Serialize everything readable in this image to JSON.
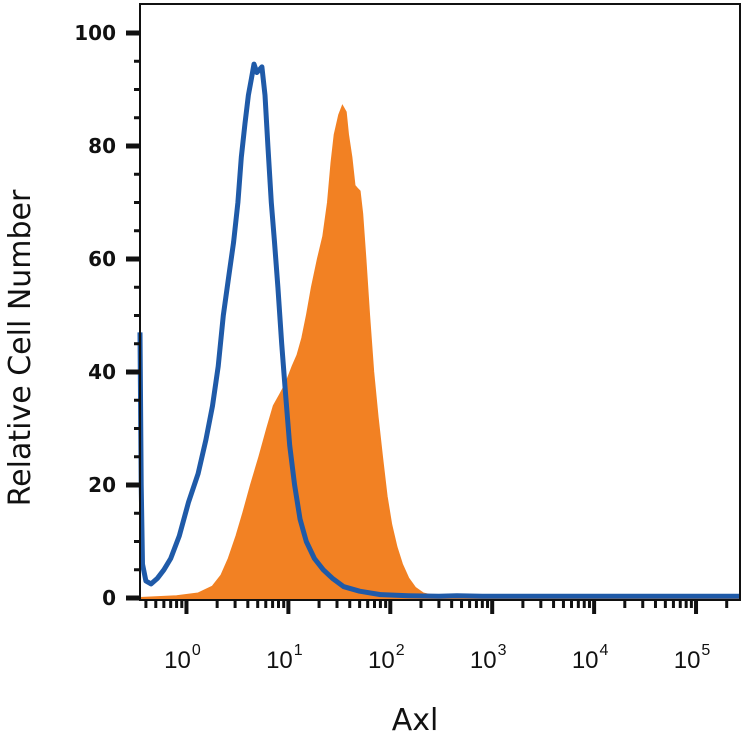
{
  "chart_data": {
    "type": "area",
    "xlabel": "Axl",
    "ylabel": "Relative Cell Number",
    "x_scale": "log",
    "xlim": [
      0.35,
      270000
    ],
    "ylim": [
      0,
      100
    ],
    "y_ticks": [
      {
        "value": 0,
        "label": "0"
      },
      {
        "value": 20,
        "label": "20"
      },
      {
        "value": 40,
        "label": "40"
      },
      {
        "value": 60,
        "label": "60"
      },
      {
        "value": 80,
        "label": "80"
      },
      {
        "value": 100,
        "label": "100"
      }
    ],
    "x_ticks": [
      {
        "value": 1,
        "base": "10",
        "exp": "0"
      },
      {
        "value": 10,
        "base": "10",
        "exp": "1"
      },
      {
        "value": 100,
        "base": "10",
        "exp": "2"
      },
      {
        "value": 1000,
        "base": "10",
        "exp": "3"
      },
      {
        "value": 10000,
        "base": "10",
        "exp": "4"
      },
      {
        "value": 100000,
        "base": "10",
        "exp": "5"
      }
    ],
    "grid": false,
    "series": [
      {
        "style": "filled",
        "color": "#F28123",
        "points": [
          [
            0.35,
            0
          ],
          [
            0.8,
            0.3
          ],
          [
            1.3,
            0.8
          ],
          [
            1.8,
            2
          ],
          [
            2.2,
            4
          ],
          [
            2.6,
            7
          ],
          [
            3.1,
            11
          ],
          [
            3.6,
            15
          ],
          [
            4.3,
            20
          ],
          [
            5.2,
            25
          ],
          [
            6.2,
            30
          ],
          [
            7.2,
            34
          ],
          [
            8.3,
            36
          ],
          [
            9.5,
            38
          ],
          [
            11,
            41
          ],
          [
            12.3,
            43
          ],
          [
            13.7,
            46
          ],
          [
            15.2,
            50
          ],
          [
            17,
            55
          ],
          [
            19.5,
            60
          ],
          [
            22,
            64
          ],
          [
            24.5,
            70
          ],
          [
            26.5,
            77
          ],
          [
            28.5,
            82
          ],
          [
            31.5,
            85.5
          ],
          [
            34,
            87
          ],
          [
            36.5,
            86
          ],
          [
            38.5,
            82
          ],
          [
            41.5,
            78
          ],
          [
            44.5,
            73
          ],
          [
            47,
            72.5
          ],
          [
            50,
            72
          ],
          [
            53,
            68
          ],
          [
            57,
            60
          ],
          [
            62,
            50
          ],
          [
            68,
            40
          ],
          [
            75,
            32
          ],
          [
            83,
            25
          ],
          [
            92,
            18
          ],
          [
            102,
            13
          ],
          [
            115,
            9
          ],
          [
            130,
            6
          ],
          [
            150,
            3.5
          ],
          [
            175,
            1.8
          ],
          [
            210,
            0.8
          ],
          [
            280,
            0.3
          ],
          [
            400,
            0.2
          ],
          [
            1000,
            0.2
          ],
          [
            10000,
            0.2
          ],
          [
            100000,
            0.2
          ],
          [
            270000,
            0.2
          ]
        ]
      },
      {
        "style": "outline",
        "color": "#1F5AA8",
        "points": [
          [
            0.35,
            47
          ],
          [
            0.36,
            20
          ],
          [
            0.37,
            6
          ],
          [
            0.4,
            3
          ],
          [
            0.45,
            2.5
          ],
          [
            0.52,
            3.5
          ],
          [
            0.6,
            5
          ],
          [
            0.7,
            7
          ],
          [
            0.85,
            11
          ],
          [
            1.05,
            17
          ],
          [
            1.3,
            22
          ],
          [
            1.55,
            28
          ],
          [
            1.8,
            34
          ],
          [
            2.05,
            41
          ],
          [
            2.3,
            50
          ],
          [
            2.6,
            57
          ],
          [
            2.9,
            63
          ],
          [
            3.2,
            70
          ],
          [
            3.45,
            78
          ],
          [
            3.75,
            84
          ],
          [
            4.05,
            89
          ],
          [
            4.35,
            92
          ],
          [
            4.6,
            94.5
          ],
          [
            4.9,
            93
          ],
          [
            5.2,
            93.5
          ],
          [
            5.5,
            94
          ],
          [
            5.9,
            89
          ],
          [
            6.3,
            80
          ],
          [
            6.8,
            70
          ],
          [
            7.3,
            63
          ],
          [
            7.9,
            55
          ],
          [
            8.6,
            45
          ],
          [
            9.4,
            36
          ],
          [
            10.3,
            27
          ],
          [
            11.5,
            20
          ],
          [
            13,
            14
          ],
          [
            15,
            10
          ],
          [
            18,
            7
          ],
          [
            22,
            5
          ],
          [
            27,
            3.5
          ],
          [
            35,
            2
          ],
          [
            50,
            1.2
          ],
          [
            80,
            0.6
          ],
          [
            150,
            0.4
          ],
          [
            300,
            0.3
          ],
          [
            450,
            0.4
          ],
          [
            800,
            0.3
          ],
          [
            5000,
            0.3
          ],
          [
            50000,
            0.3
          ],
          [
            270000,
            0.3
          ]
        ]
      }
    ]
  }
}
